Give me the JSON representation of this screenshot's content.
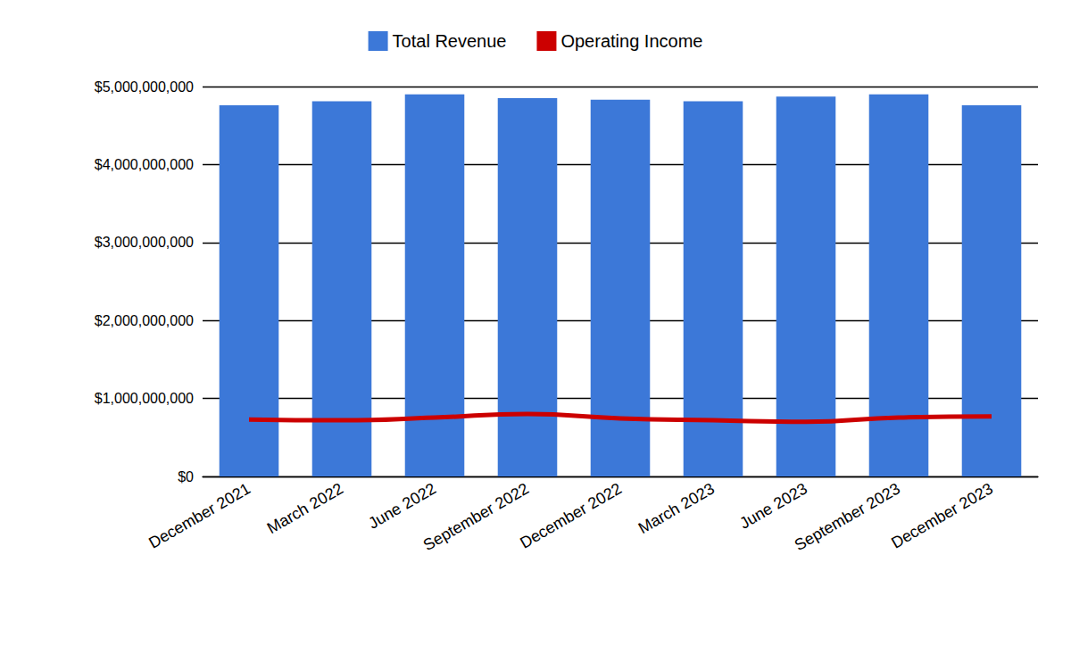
{
  "chart_data": {
    "type": "bar",
    "categories": [
      "December 2021",
      "March 2022",
      "June 2022",
      "September 2022",
      "December 2022",
      "March 2023",
      "June 2023",
      "September 2023",
      "December 2023"
    ],
    "series": [
      {
        "name": "Total Revenue",
        "type": "bar",
        "color": "#3c78d8",
        "values": [
          4760000000,
          4810000000,
          4900000000,
          4850000000,
          4830000000,
          4810000000,
          4870000000,
          4900000000,
          4760000000
        ]
      },
      {
        "name": "Operating Income",
        "type": "line",
        "color": "#cc0000",
        "values": [
          730000000,
          720000000,
          755000000,
          800000000,
          745000000,
          720000000,
          700000000,
          755000000,
          770000000
        ]
      }
    ],
    "ylim": [
      0,
      5000000000
    ],
    "yticks": [
      {
        "value": 0,
        "label": "$0"
      },
      {
        "value": 1000000000,
        "label": "$1,000,000,000"
      },
      {
        "value": 2000000000,
        "label": "$2,000,000,000"
      },
      {
        "value": 3000000000,
        "label": "$3,000,000,000"
      },
      {
        "value": 4000000000,
        "label": "$4,000,000,000"
      },
      {
        "value": 5000000000,
        "label": "$5,000,000,000"
      }
    ],
    "grid": true,
    "legend": "top"
  }
}
